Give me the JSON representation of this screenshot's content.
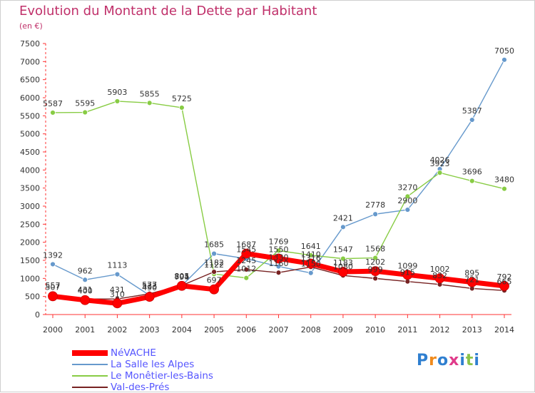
{
  "chart_data": {
    "type": "line",
    "title": "Evolution du Montant de la Dette par Habitant",
    "subtitle": "(en €)",
    "xlabel": "",
    "ylabel": "",
    "ylim": [
      0,
      7500
    ],
    "yticks": [
      0,
      500,
      1000,
      1500,
      2000,
      2500,
      3000,
      3500,
      4000,
      4500,
      5000,
      5500,
      6000,
      6500,
      7000,
      7500
    ],
    "categories": [
      "2000",
      "2001",
      "2002",
      "2003",
      "2004",
      "2005",
      "2006",
      "2007",
      "2008",
      "2009",
      "2010",
      "2011",
      "2012",
      "2013",
      "2014"
    ],
    "grid": false,
    "legend_position": "bottom-left",
    "series": [
      {
        "name": "NéVACHE",
        "color": "#ff0000",
        "values": [
          507,
          400,
          310,
          490,
          794,
          697,
          1687,
          1550,
          1410,
          1183,
          1202,
          1099,
          1002,
          895,
          792
        ]
      },
      {
        "name": "La Salle les Alpes",
        "color": "#6699cc",
        "values": [
          1392,
          962,
          1113,
          533,
          801,
          1685,
          1545,
          1330,
          1150,
          2421,
          2778,
          2900,
          4026,
          5387,
          7050
        ]
      },
      {
        "name": "Le Monêtier-les-Bains",
        "color": "#88cc44",
        "values": [
          5587,
          5595,
          5903,
          5855,
          5725,
          1122,
          1012,
          1769,
          1641,
          1547,
          1568,
          3270,
          3923,
          3696,
          3480
        ]
      },
      {
        "name": "Val-des-Prés",
        "color": "#772222",
        "values": [
          557,
          431,
          431,
          577,
          805,
          1182,
          1245,
          1160,
          1316,
          1080,
          999,
          915,
          832,
          721,
          665
        ]
      }
    ]
  },
  "brand": {
    "logo_letters": [
      "P",
      "r",
      "o",
      "x",
      "i",
      "t",
      "i"
    ]
  }
}
